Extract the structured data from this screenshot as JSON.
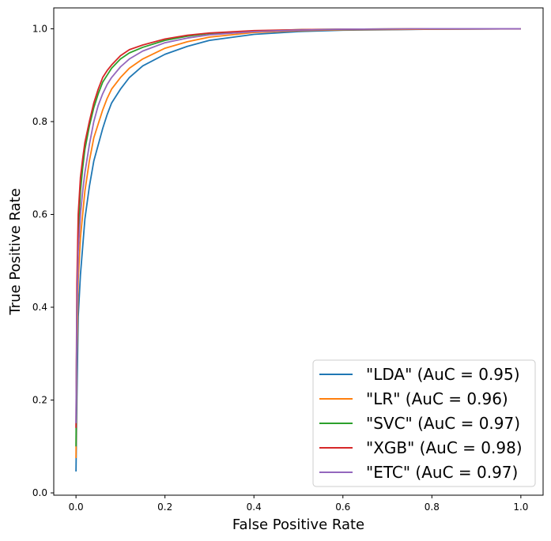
{
  "chart_data": {
    "type": "line",
    "title": "",
    "xlabel": "False Positive Rate",
    "ylabel": "True Positive Rate",
    "xlim": [
      -0.05,
      1.05
    ],
    "ylim": [
      -0.005,
      1.045
    ],
    "xticks": [
      0.0,
      0.2,
      0.4,
      0.6,
      0.8,
      1.0
    ],
    "yticks": [
      0.0,
      0.2,
      0.4,
      0.6,
      0.8,
      1.0
    ],
    "xtick_labels": [
      "0.0",
      "0.2",
      "0.4",
      "0.6",
      "0.8",
      "1.0"
    ],
    "ytick_labels": [
      "0.0",
      "0.2",
      "0.4",
      "0.6",
      "0.8",
      "1.0"
    ],
    "grid": false,
    "legend_position": "bottom-right",
    "series": [
      {
        "name": "\"LDA\" (AuC = 0.95)",
        "color": "#1f77b4",
        "x": [
          0.0,
          0.002,
          0.005,
          0.01,
          0.015,
          0.02,
          0.03,
          0.04,
          0.05,
          0.06,
          0.07,
          0.08,
          0.1,
          0.12,
          0.15,
          0.2,
          0.25,
          0.3,
          0.4,
          0.5,
          0.6,
          0.8,
          1.0
        ],
        "y": [
          0.046,
          0.2,
          0.38,
          0.47,
          0.53,
          0.59,
          0.66,
          0.715,
          0.75,
          0.785,
          0.815,
          0.84,
          0.87,
          0.895,
          0.92,
          0.945,
          0.962,
          0.975,
          0.988,
          0.994,
          0.997,
          0.999,
          1.0
        ]
      },
      {
        "name": "\"LR\" (AuC = 0.96)",
        "color": "#ff7f0e",
        "x": [
          0.0,
          0.002,
          0.005,
          0.01,
          0.015,
          0.02,
          0.03,
          0.04,
          0.05,
          0.06,
          0.07,
          0.08,
          0.1,
          0.12,
          0.15,
          0.2,
          0.25,
          0.3,
          0.4,
          0.5,
          0.6,
          0.8,
          1.0
        ],
        "y": [
          0.075,
          0.3,
          0.46,
          0.55,
          0.6,
          0.65,
          0.715,
          0.765,
          0.795,
          0.825,
          0.85,
          0.87,
          0.895,
          0.915,
          0.935,
          0.958,
          0.972,
          0.982,
          0.992,
          0.996,
          0.998,
          0.999,
          1.0
        ]
      },
      {
        "name": "\"SVC\" (AuC = 0.97)",
        "color": "#2ca02c",
        "x": [
          0.0,
          0.002,
          0.005,
          0.01,
          0.015,
          0.02,
          0.03,
          0.04,
          0.05,
          0.06,
          0.07,
          0.08,
          0.1,
          0.12,
          0.15,
          0.2,
          0.25,
          0.3,
          0.4,
          0.5,
          0.6,
          0.8,
          1.0
        ],
        "y": [
          0.1,
          0.4,
          0.56,
          0.65,
          0.7,
          0.74,
          0.79,
          0.83,
          0.86,
          0.885,
          0.9,
          0.915,
          0.935,
          0.948,
          0.96,
          0.975,
          0.984,
          0.99,
          0.995,
          0.998,
          0.999,
          1.0,
          1.0
        ]
      },
      {
        "name": "\"XGB\" (AuC = 0.98)",
        "color": "#d62728",
        "x": [
          0.0,
          0.002,
          0.005,
          0.01,
          0.015,
          0.02,
          0.03,
          0.04,
          0.05,
          0.06,
          0.07,
          0.08,
          0.1,
          0.12,
          0.15,
          0.2,
          0.25,
          0.3,
          0.4,
          0.5,
          0.6,
          0.8,
          1.0
        ],
        "y": [
          0.14,
          0.45,
          0.6,
          0.68,
          0.72,
          0.755,
          0.8,
          0.84,
          0.87,
          0.895,
          0.91,
          0.922,
          0.942,
          0.955,
          0.965,
          0.978,
          0.986,
          0.991,
          0.996,
          0.998,
          0.999,
          1.0,
          1.0
        ]
      },
      {
        "name": "\"ETC\" (AuC = 0.97)",
        "color": "#9467bd",
        "x": [
          0.0,
          0.002,
          0.005,
          0.01,
          0.015,
          0.02,
          0.03,
          0.04,
          0.05,
          0.06,
          0.07,
          0.08,
          0.1,
          0.12,
          0.15,
          0.2,
          0.25,
          0.3,
          0.4,
          0.5,
          0.6,
          0.8,
          1.0
        ],
        "y": [
          0.15,
          0.38,
          0.52,
          0.6,
          0.65,
          0.69,
          0.75,
          0.8,
          0.835,
          0.86,
          0.88,
          0.895,
          0.918,
          0.935,
          0.952,
          0.97,
          0.98,
          0.987,
          0.994,
          0.997,
          0.999,
          1.0,
          1.0
        ]
      }
    ]
  }
}
